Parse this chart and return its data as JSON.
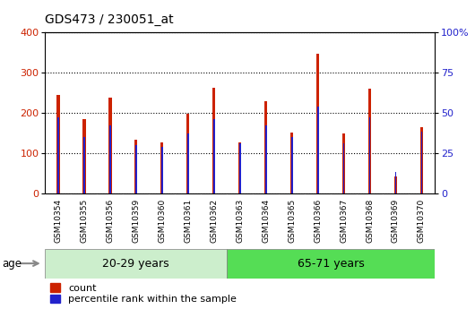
{
  "title": "GDS473 / 230051_at",
  "samples": [
    "GSM10354",
    "GSM10355",
    "GSM10356",
    "GSM10359",
    "GSM10360",
    "GSM10361",
    "GSM10362",
    "GSM10363",
    "GSM10364",
    "GSM10365",
    "GSM10366",
    "GSM10367",
    "GSM10368",
    "GSM10369",
    "GSM10370"
  ],
  "counts": [
    245,
    185,
    237,
    133,
    127,
    197,
    263,
    127,
    228,
    150,
    348,
    148,
    260,
    42,
    165
  ],
  "percentiles": [
    47,
    35,
    42,
    30,
    29,
    37,
    46,
    31,
    42,
    35,
    54,
    31,
    47,
    13,
    38
  ],
  "group1_label": "20-29 years",
  "group2_label": "65-71 years",
  "group1_count": 7,
  "group2_count": 8,
  "bar_color_count": "#cc2200",
  "bar_color_pct": "#2222cc",
  "left_ylim": [
    0,
    400
  ],
  "right_ylim": [
    0,
    100
  ],
  "left_yticks": [
    0,
    100,
    200,
    300,
    400
  ],
  "right_yticks": [
    0,
    25,
    50,
    75,
    100
  ],
  "right_yticklabels": [
    "0",
    "25",
    "50",
    "75",
    "100%"
  ],
  "grid_color": "black",
  "background_color": "#ffffff",
  "tick_area_color": "#c8c8c8",
  "group1_bg": "#cceecc",
  "group2_bg": "#55dd55",
  "legend_count_label": "count",
  "legend_pct_label": "percentile rank within the sample",
  "red_bar_width": 0.12,
  "blue_marker_size": 5
}
